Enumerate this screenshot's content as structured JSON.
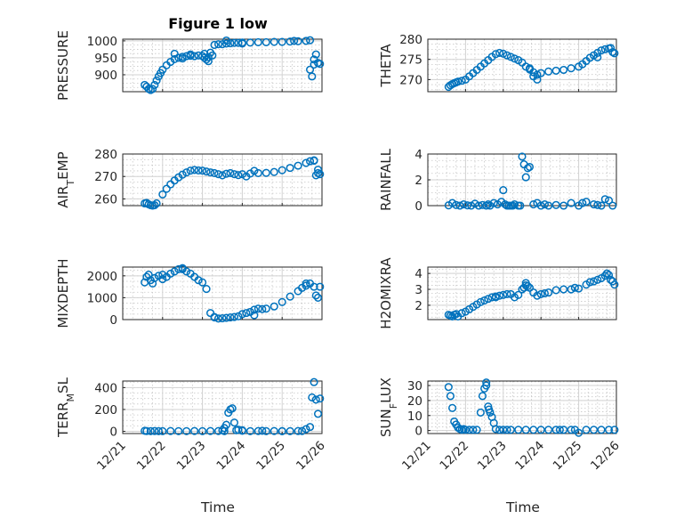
{
  "chart_data": {
    "type": "scatter",
    "title": "Figure 1 low",
    "marker_color": "#0072BD",
    "xlabel": "Time",
    "x_ticks": [
      "12/21",
      "12/22",
      "12/23",
      "12/24",
      "12/25",
      "12/26"
    ],
    "x_range": [
      21,
      26
    ],
    "panels": [
      {
        "id": "pressure",
        "ylabel": "PRESSURE",
        "ylim": [
          850,
          1005
        ],
        "yticks": [
          900,
          950,
          1000
        ],
        "ytick_labels": [
          "900",
          "950",
          "1000"
        ],
        "x": [
          21.55,
          21.6,
          21.65,
          21.7,
          21.75,
          21.8,
          21.85,
          21.9,
          21.95,
          22.0,
          22.1,
          22.2,
          22.3,
          22.4,
          22.5,
          22.6,
          22.7,
          22.8,
          22.9,
          23.0,
          23.05,
          23.1,
          23.15,
          23.2,
          23.3,
          23.4,
          23.5,
          23.6,
          23.7,
          23.8,
          23.9,
          24.0,
          24.2,
          24.4,
          24.6,
          24.8,
          25.0,
          25.2,
          25.4,
          25.6,
          25.7,
          25.75,
          25.8,
          25.85
        ],
        "y": [
          870,
          865,
          858,
          855,
          858,
          870,
          883,
          895,
          905,
          915,
          928,
          938,
          946,
          950,
          953,
          955,
          956,
          955,
          957,
          955,
          950,
          945,
          940,
          965,
          988,
          990,
          990,
          992,
          993,
          994,
          994,
          995,
          995,
          996,
          996,
          997,
          997,
          998,
          999,
          1000,
          915,
          895,
          930,
          960
        ],
        "markers": [
          [
            22.3,
            962
          ],
          [
            22.5,
            948
          ],
          [
            22.7,
            960
          ],
          [
            23.05,
            962
          ],
          [
            23.15,
            952
          ],
          [
            23.25,
            957
          ],
          [
            23.6,
            1001
          ],
          [
            24.0,
            992
          ],
          [
            25.3,
            1000
          ],
          [
            25.8,
            945
          ],
          [
            25.9,
            935
          ],
          [
            25.95,
            932
          ],
          [
            25.7,
            1002
          ]
        ]
      },
      {
        "id": "theta",
        "ylabel": "THETA",
        "ylim": [
          267,
          280
        ],
        "yticks": [
          270,
          275,
          280
        ],
        "ytick_labels": [
          "270",
          "275",
          "280"
        ],
        "x": [
          21.55,
          21.6,
          21.65,
          21.7,
          21.75,
          21.8,
          21.9,
          22.0,
          22.1,
          22.2,
          22.3,
          22.4,
          22.5,
          22.6,
          22.7,
          22.8,
          22.9,
          23.0,
          23.1,
          23.2,
          23.3,
          23.4,
          23.5,
          23.6,
          23.7,
          23.8,
          23.9,
          24.0,
          24.2,
          24.4,
          24.6,
          24.8,
          25.0,
          25.1,
          25.2,
          25.3,
          25.4,
          25.5,
          25.6,
          25.7,
          25.8,
          25.9,
          25.95
        ],
        "y": [
          268.2,
          268.6,
          268.9,
          269.1,
          269.3,
          269.5,
          269.7,
          270.0,
          270.8,
          271.6,
          272.4,
          273.2,
          274.0,
          274.8,
          275.6,
          276.3,
          276.6,
          276.4,
          276.0,
          275.6,
          275.2,
          274.8,
          274.2,
          273.2,
          272.5,
          271.8,
          271.2,
          271.6,
          272.0,
          272.2,
          272.4,
          272.8,
          273.2,
          273.8,
          274.6,
          275.4,
          276.0,
          276.6,
          277.2,
          277.5,
          277.7,
          276.8,
          276.5
        ],
        "markers": [
          [
            23.7,
            272.8
          ],
          [
            23.8,
            270.8
          ],
          [
            23.9,
            270.0
          ],
          [
            25.5,
            275.5
          ],
          [
            25.85,
            277.8
          ]
        ]
      },
      {
        "id": "air_temp",
        "ylabel": "AIR_TEMP",
        "ylim": [
          257,
          280
        ],
        "yticks": [
          260,
          270,
          280
        ],
        "ytick_labels": [
          "260",
          "270",
          "280"
        ],
        "x": [
          21.55,
          21.6,
          21.65,
          21.7,
          21.75,
          21.8,
          21.85,
          22.0,
          22.1,
          22.2,
          22.3,
          22.4,
          22.5,
          22.6,
          22.7,
          22.8,
          22.9,
          23.0,
          23.1,
          23.2,
          23.3,
          23.4,
          23.5,
          23.6,
          23.7,
          23.8,
          23.9,
          24.0,
          24.2,
          24.4,
          24.6,
          24.8,
          25.0,
          25.2,
          25.4,
          25.6,
          25.7,
          25.8,
          25.85,
          25.9,
          25.95
        ],
        "y": [
          258.0,
          258.2,
          257.6,
          257.2,
          257.0,
          257.2,
          258.0,
          262.0,
          264.5,
          266.5,
          268.2,
          269.6,
          270.8,
          271.8,
          272.6,
          272.9,
          272.7,
          272.6,
          272.2,
          271.8,
          271.5,
          271.0,
          270.5,
          271.2,
          271.5,
          271.0,
          270.6,
          271.0,
          271.3,
          271.5,
          271.6,
          272.0,
          272.8,
          273.8,
          274.8,
          276.0,
          276.8,
          277.0,
          270.5,
          273.0,
          271.0
        ],
        "markers": [
          [
            24.1,
            270.0
          ],
          [
            24.3,
            272.5
          ],
          [
            25.8,
            277.2
          ],
          [
            25.9,
            271.5
          ]
        ]
      },
      {
        "id": "rainfall",
        "ylabel": "RAINFALL",
        "ylim": [
          0,
          4
        ],
        "yticks": [
          0,
          2,
          4
        ],
        "ytick_labels": [
          "0",
          "2",
          "4"
        ],
        "x": [
          21.55,
          21.65,
          21.75,
          21.85,
          21.95,
          22.05,
          22.15,
          22.25,
          22.35,
          22.45,
          22.55,
          22.65,
          22.75,
          22.85,
          22.95,
          23.0,
          23.05,
          23.1,
          23.15,
          23.2,
          23.25,
          23.3,
          23.4,
          23.5,
          23.55,
          23.6,
          23.65,
          23.7,
          23.8,
          23.9,
          24.0,
          24.2,
          24.4,
          24.6,
          24.8,
          25.0,
          25.2,
          25.4,
          25.6,
          25.7,
          25.8,
          25.9
        ],
        "y": [
          0.02,
          0.2,
          0.05,
          0.0,
          0.1,
          0.02,
          0.0,
          0.15,
          0.0,
          0.05,
          0.0,
          0.0,
          0.2,
          0.1,
          0.3,
          1.2,
          0.1,
          0.0,
          0.0,
          0.0,
          0.0,
          0.1,
          0.0,
          3.8,
          3.2,
          2.2,
          2.9,
          3.0,
          0.1,
          0.2,
          0.0,
          0.0,
          0.05,
          0.0,
          0.2,
          0.0,
          0.3,
          0.1,
          0.0,
          0.5,
          0.4,
          0.0
        ],
        "markers": [
          [
            22.6,
            0.1
          ],
          [
            23.45,
            0.0
          ],
          [
            24.1,
            0.1
          ],
          [
            25.1,
            0.2
          ],
          [
            25.5,
            0.05
          ]
        ]
      },
      {
        "id": "mixdepth",
        "ylabel": "MIXDEPTH",
        "ylim": [
          0,
          2400
        ],
        "yticks": [
          0,
          1000,
          2000
        ],
        "ytick_labels": [
          "0",
          "1000",
          "2000"
        ],
        "x": [
          21.55,
          21.6,
          21.65,
          21.7,
          21.75,
          21.8,
          21.9,
          22.0,
          22.1,
          22.2,
          22.3,
          22.4,
          22.5,
          22.6,
          22.7,
          22.8,
          22.9,
          23.0,
          23.1,
          23.2,
          23.3,
          23.4,
          23.5,
          23.6,
          23.7,
          23.8,
          23.9,
          24.0,
          24.1,
          24.2,
          24.3,
          24.4,
          24.5,
          24.6,
          24.8,
          25.0,
          25.2,
          25.4,
          25.5,
          25.6,
          25.7,
          25.8,
          25.85,
          25.9,
          25.95
        ],
        "y": [
          1700,
          1950,
          2050,
          1800,
          1650,
          1900,
          2000,
          1850,
          1950,
          2100,
          2200,
          2300,
          2350,
          2200,
          2100,
          1950,
          1800,
          1700,
          1400,
          300,
          100,
          50,
          60,
          80,
          100,
          120,
          150,
          250,
          300,
          350,
          450,
          500,
          480,
          500,
          600,
          800,
          1050,
          1300,
          1450,
          1550,
          1650,
          1500,
          1100,
          1000,
          1500
        ],
        "markers": [
          [
            22.0,
            2050
          ],
          [
            22.5,
            2300
          ],
          [
            23.3,
            120
          ],
          [
            24.3,
            200
          ],
          [
            25.6,
            1650
          ]
        ]
      },
      {
        "id": "h2omixra",
        "ylabel": "H2OMIXRA",
        "ylim": [
          1.1,
          4.4
        ],
        "yticks": [
          2,
          3,
          4
        ],
        "ytick_labels": [
          "2",
          "3",
          "4"
        ],
        "x": [
          21.55,
          21.6,
          21.65,
          21.7,
          21.75,
          21.8,
          21.9,
          22.0,
          22.1,
          22.2,
          22.3,
          22.4,
          22.5,
          22.6,
          22.7,
          22.8,
          22.9,
          23.0,
          23.1,
          23.2,
          23.3,
          23.4,
          23.5,
          23.55,
          23.6,
          23.65,
          23.7,
          23.8,
          23.9,
          24.0,
          24.2,
          24.4,
          24.6,
          24.8,
          24.9,
          25.0,
          25.2,
          25.4,
          25.5,
          25.6,
          25.7,
          25.75,
          25.8,
          25.9,
          25.95
        ],
        "y": [
          1.4,
          1.35,
          1.3,
          1.4,
          1.45,
          1.3,
          1.5,
          1.6,
          1.75,
          1.9,
          2.05,
          2.2,
          2.3,
          2.4,
          2.5,
          2.55,
          2.6,
          2.65,
          2.7,
          2.7,
          2.5,
          2.65,
          3.0,
          3.1,
          3.25,
          3.2,
          3.1,
          2.8,
          2.6,
          2.7,
          2.8,
          2.95,
          3.0,
          3.0,
          3.1,
          3.05,
          3.3,
          3.5,
          3.6,
          3.7,
          3.85,
          4.0,
          3.9,
          3.5,
          3.3
        ],
        "markers": [
          [
            22.8,
            2.5
          ],
          [
            23.6,
            3.4
          ],
          [
            24.1,
            2.75
          ],
          [
            25.3,
            3.45
          ],
          [
            25.85,
            3.6
          ]
        ]
      },
      {
        "id": "terr_msl",
        "ylabel": "TERR_MSL",
        "ylim": [
          -20,
          460
        ],
        "yticks": [
          0,
          200,
          400
        ],
        "ytick_labels": [
          "0",
          "200",
          "400"
        ],
        "x": [
          21.55,
          21.6,
          21.7,
          21.8,
          21.9,
          22.0,
          22.2,
          22.4,
          22.6,
          22.8,
          23.0,
          23.2,
          23.4,
          23.5,
          23.55,
          23.6,
          23.65,
          23.7,
          23.75,
          23.8,
          23.85,
          23.9,
          24.0,
          24.2,
          24.4,
          24.6,
          24.8,
          25.0,
          25.2,
          25.4,
          25.6,
          25.7,
          25.75,
          25.8,
          25.85,
          25.9,
          25.95
        ],
        "y": [
          5,
          3,
          2,
          3,
          2,
          2,
          3,
          2,
          2,
          3,
          2,
          3,
          3,
          10,
          30,
          60,
          170,
          200,
          210,
          80,
          10,
          15,
          5,
          2,
          3,
          2,
          3,
          2,
          2,
          3,
          20,
          40,
          310,
          450,
          290,
          160,
          300
        ],
        "markers": [
          [
            23.55,
            2
          ],
          [
            24.0,
            10
          ],
          [
            24.5,
            5
          ],
          [
            25.0,
            2
          ],
          [
            25.5,
            3
          ]
        ]
      },
      {
        "id": "sun_flux",
        "ylabel": "SUN_FLUX",
        "ylim": [
          -2,
          33
        ],
        "yticks": [
          0,
          10,
          20,
          30
        ],
        "ytick_labels": [
          "0",
          "10",
          "20",
          "30"
        ],
        "x": [
          21.55,
          21.6,
          21.65,
          21.7,
          21.75,
          21.8,
          21.85,
          21.9,
          22.0,
          22.1,
          22.2,
          22.3,
          22.4,
          22.45,
          22.5,
          22.55,
          22.6,
          22.65,
          22.7,
          22.75,
          22.8,
          22.9,
          23.0,
          23.2,
          23.4,
          23.6,
          23.8,
          24.0,
          24.2,
          24.4,
          24.6,
          24.8,
          24.9,
          25.0,
          25.2,
          25.4,
          25.6,
          25.8,
          25.95
        ],
        "y": [
          29,
          23,
          15,
          6,
          4,
          2,
          1,
          0.5,
          0.5,
          0.5,
          0.5,
          0.5,
          12,
          23,
          28,
          32,
          16,
          12,
          9,
          5,
          1,
          0.5,
          0.5,
          0.5,
          0.5,
          0.5,
          0.5,
          0.5,
          0.5,
          0.5,
          0.5,
          0.5,
          0.5,
          -1.5,
          0.5,
          0.5,
          0.5,
          0.5,
          0.5
        ],
        "markers": [
          [
            22.55,
            30
          ],
          [
            22.62,
            14
          ],
          [
            21.95,
            1
          ],
          [
            23.1,
            0.5
          ],
          [
            24.5,
            0.5
          ]
        ]
      }
    ]
  }
}
